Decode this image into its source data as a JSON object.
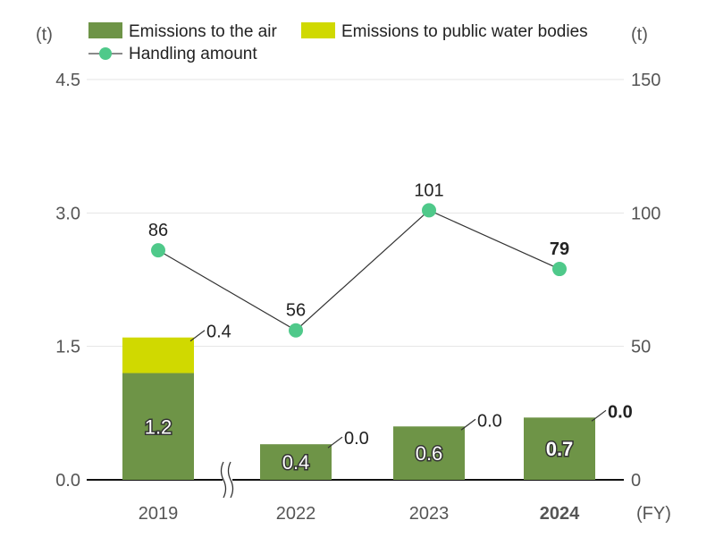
{
  "chart_data": {
    "type": "bar",
    "categories": [
      "2019",
      "2022",
      "2023",
      "2024"
    ],
    "x_unit": "(FY)",
    "highlight_category": "2024",
    "axis_break_after": "2019",
    "left_axis": {
      "unit": "(t)",
      "ticks": [
        "4.5",
        "3.0",
        "1.5",
        "0.0"
      ],
      "ylim": [
        0,
        4.5
      ]
    },
    "right_axis": {
      "unit": "(t)",
      "ticks": [
        "150",
        "100",
        "50",
        "0"
      ],
      "ylim": [
        0,
        150
      ]
    },
    "series": [
      {
        "name": "Emissions to the air",
        "kind": "bar",
        "stack": "main",
        "axis": "left",
        "color": "#6e9447",
        "values": [
          1.2,
          0.4,
          0.6,
          0.7
        ],
        "labels": [
          "1.2",
          "0.4",
          "0.6",
          "0.7"
        ]
      },
      {
        "name": "Emissions to public water bodies",
        "kind": "bar",
        "stack": "main",
        "axis": "left",
        "color": "#d0d900",
        "values": [
          0.4,
          0.0,
          0.0,
          0.0
        ],
        "labels": [
          "0.4",
          "0.0",
          "0.0",
          "0.0"
        ]
      },
      {
        "name": "Handling amount",
        "kind": "line",
        "axis": "right",
        "color": "#4fc98a",
        "values": [
          86,
          56,
          101,
          79
        ],
        "labels": [
          "86",
          "56",
          "101",
          "79"
        ]
      }
    ],
    "legend_position": "top",
    "grid": true
  }
}
